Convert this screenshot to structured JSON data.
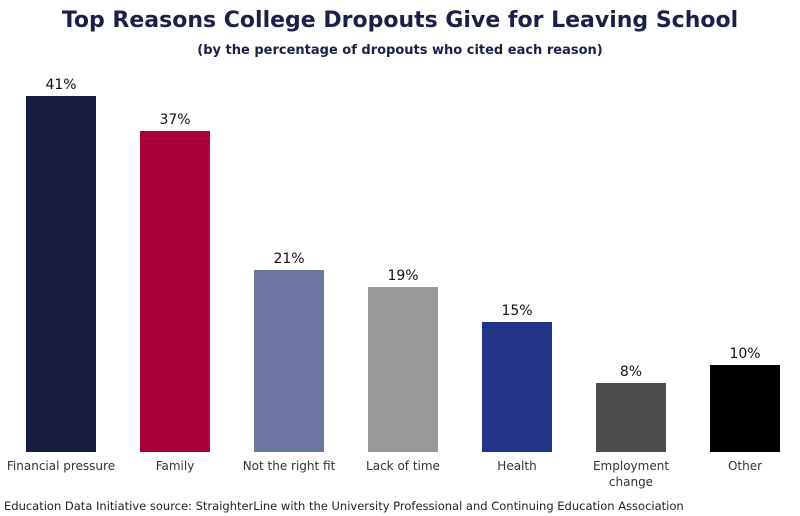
{
  "chart_data": {
    "type": "bar",
    "title": "Top Reasons College Dropouts Give for Leaving School",
    "subtitle": "(by the percentage of dropouts who cited each reason)",
    "source": "Education Data Initiative source: StraighterLine with the University Professional and Continuing Education Association",
    "categories": [
      "Financial pressure",
      "Family",
      "Not the right fit",
      "Lack of time",
      "Health",
      "Employment change",
      "Other"
    ],
    "values": [
      41,
      37,
      21,
      19,
      15,
      8,
      10
    ],
    "value_labels": [
      "41%",
      "37%",
      "21%",
      "19%",
      "15%",
      "8%",
      "10%"
    ],
    "colors": [
      "#161d40",
      "#a8003b",
      "#6b77a0",
      "#999999",
      "#213488",
      "#4d4d4d",
      "#000000"
    ]
  }
}
